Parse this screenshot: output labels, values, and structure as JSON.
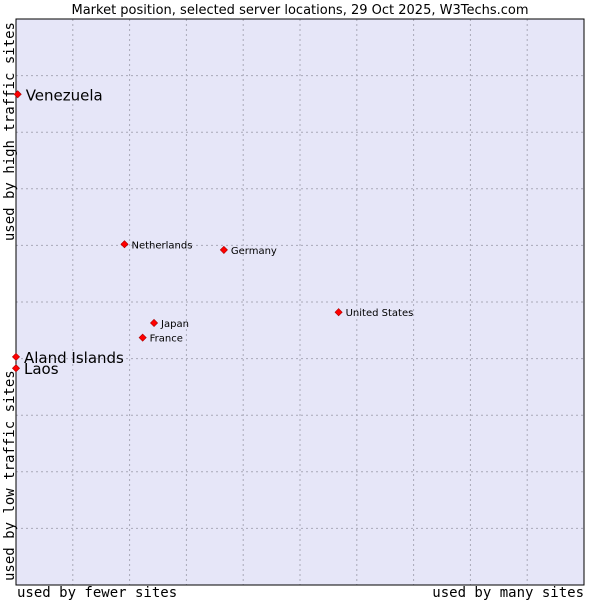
{
  "chart_data": {
    "type": "scatter",
    "title": "Market position, selected server locations, 29 Oct 2025, W3Techs.com",
    "xlabel_left": "used by fewer sites",
    "xlabel_right": "used by many sites",
    "ylabel_bottom": "used by low traffic sites",
    "ylabel_top": "used by high traffic sites",
    "xlim": [
      0,
      100
    ],
    "ylim": [
      0,
      100
    ],
    "grid": true,
    "marker_color": "#ff0000",
    "plot_background": "#e6e6f8",
    "grid_color": "#a9a9b8",
    "points": [
      {
        "label": "Venezuela",
        "x": 0.3,
        "y": 86.7,
        "highlight": true
      },
      {
        "label": "Netherlands",
        "x": 19.1,
        "y": 60.2,
        "highlight": false
      },
      {
        "label": "Germany",
        "x": 36.6,
        "y": 59.2,
        "highlight": false
      },
      {
        "label": "United States",
        "x": 56.8,
        "y": 48.2,
        "highlight": false
      },
      {
        "label": "Japan",
        "x": 24.3,
        "y": 46.3,
        "highlight": false
      },
      {
        "label": "France",
        "x": 22.3,
        "y": 43.7,
        "highlight": false
      },
      {
        "label": "Aland Islands",
        "x": 0.0,
        "y": 40.3,
        "highlight": true
      },
      {
        "label": "Laos",
        "x": 0.0,
        "y": 38.3,
        "highlight": true
      }
    ]
  }
}
